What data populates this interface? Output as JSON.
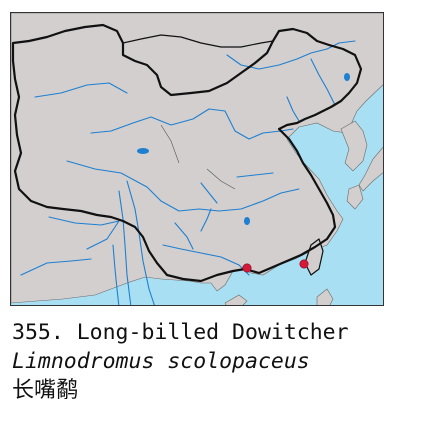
{
  "caption": {
    "number_and_common_name": "355. Long-billed Dowitcher",
    "scientific_name": "Limnodromus scolopaceus",
    "chinese_name": "长嘴鹬"
  },
  "map": {
    "colors": {
      "land": "#d2cfce",
      "sea": "#a9dff2",
      "river": "#1f7fd0",
      "border": "#111111",
      "record_marker": "#d8183a"
    },
    "record_markers": [
      {
        "location": "Hong Kong / Guangdong coast"
      },
      {
        "location": "southern Taiwan"
      }
    ]
  }
}
